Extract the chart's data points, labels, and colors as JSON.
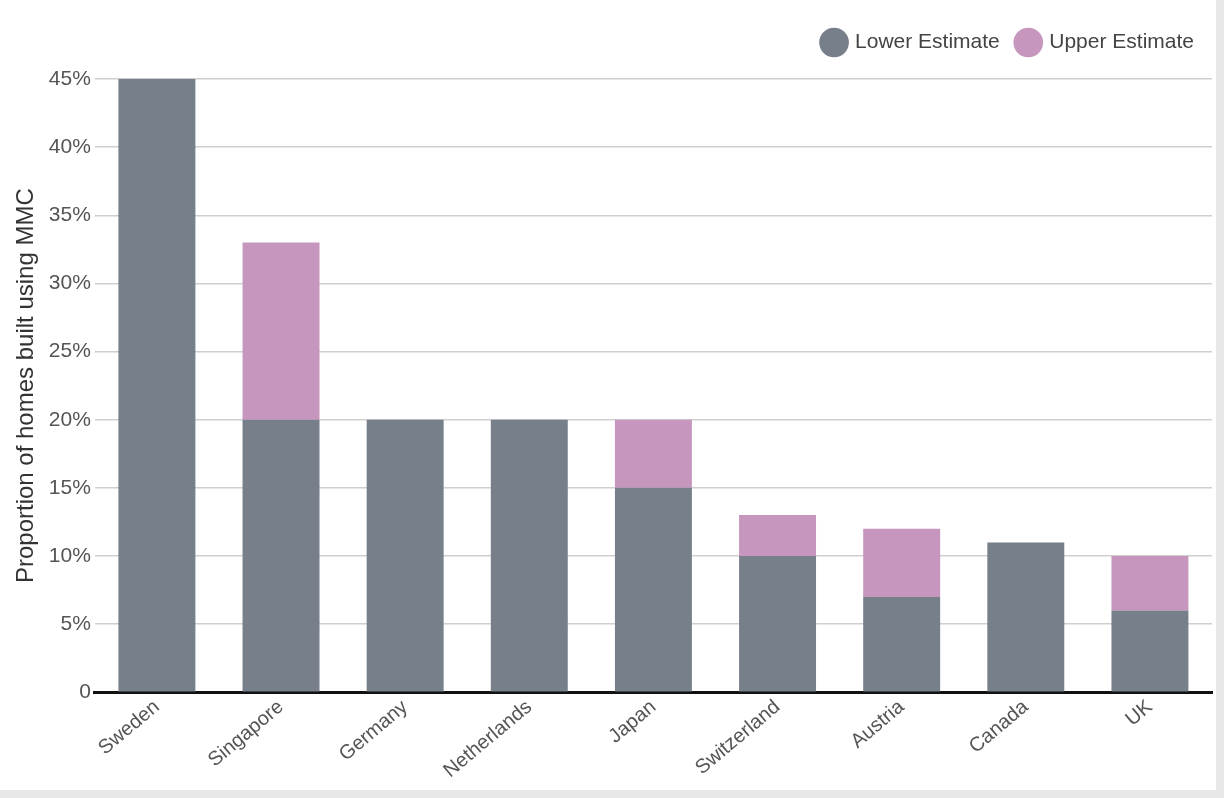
{
  "chart_data": {
    "type": "bar",
    "stacked": true,
    "ylabel": "Proportion of homes built using MMC",
    "categories": [
      "Sweden",
      "Singapore",
      "Germany",
      "Netherlands",
      "Japan",
      "Switzerland",
      "Austria",
      "Canada",
      "UK"
    ],
    "series": [
      {
        "name": "Lower Estimate",
        "color": "#777f8a",
        "values": [
          45,
          20,
          20,
          20,
          15,
          10,
          7,
          11,
          6
        ]
      },
      {
        "name": "Upper Estimate",
        "color": "#c696bf",
        "values": [
          0,
          13,
          0,
          0,
          5,
          3,
          5,
          0,
          4
        ]
      }
    ],
    "ylim": [
      0,
      45
    ],
    "yticks": [
      0,
      {
        "value": 5,
        "label": "5%"
      },
      {
        "value": 10,
        "label": "10%"
      },
      {
        "value": 15,
        "label": "15%"
      },
      {
        "value": 20,
        "label": "20%"
      },
      {
        "value": 25,
        "label": "25%"
      },
      {
        "value": 30,
        "label": "30%"
      },
      {
        "value": 35,
        "label": "35%"
      },
      {
        "value": 40,
        "label": "40%"
      },
      {
        "value": 45,
        "label": "45%"
      }
    ],
    "grid": "y",
    "legend": "top right"
  }
}
